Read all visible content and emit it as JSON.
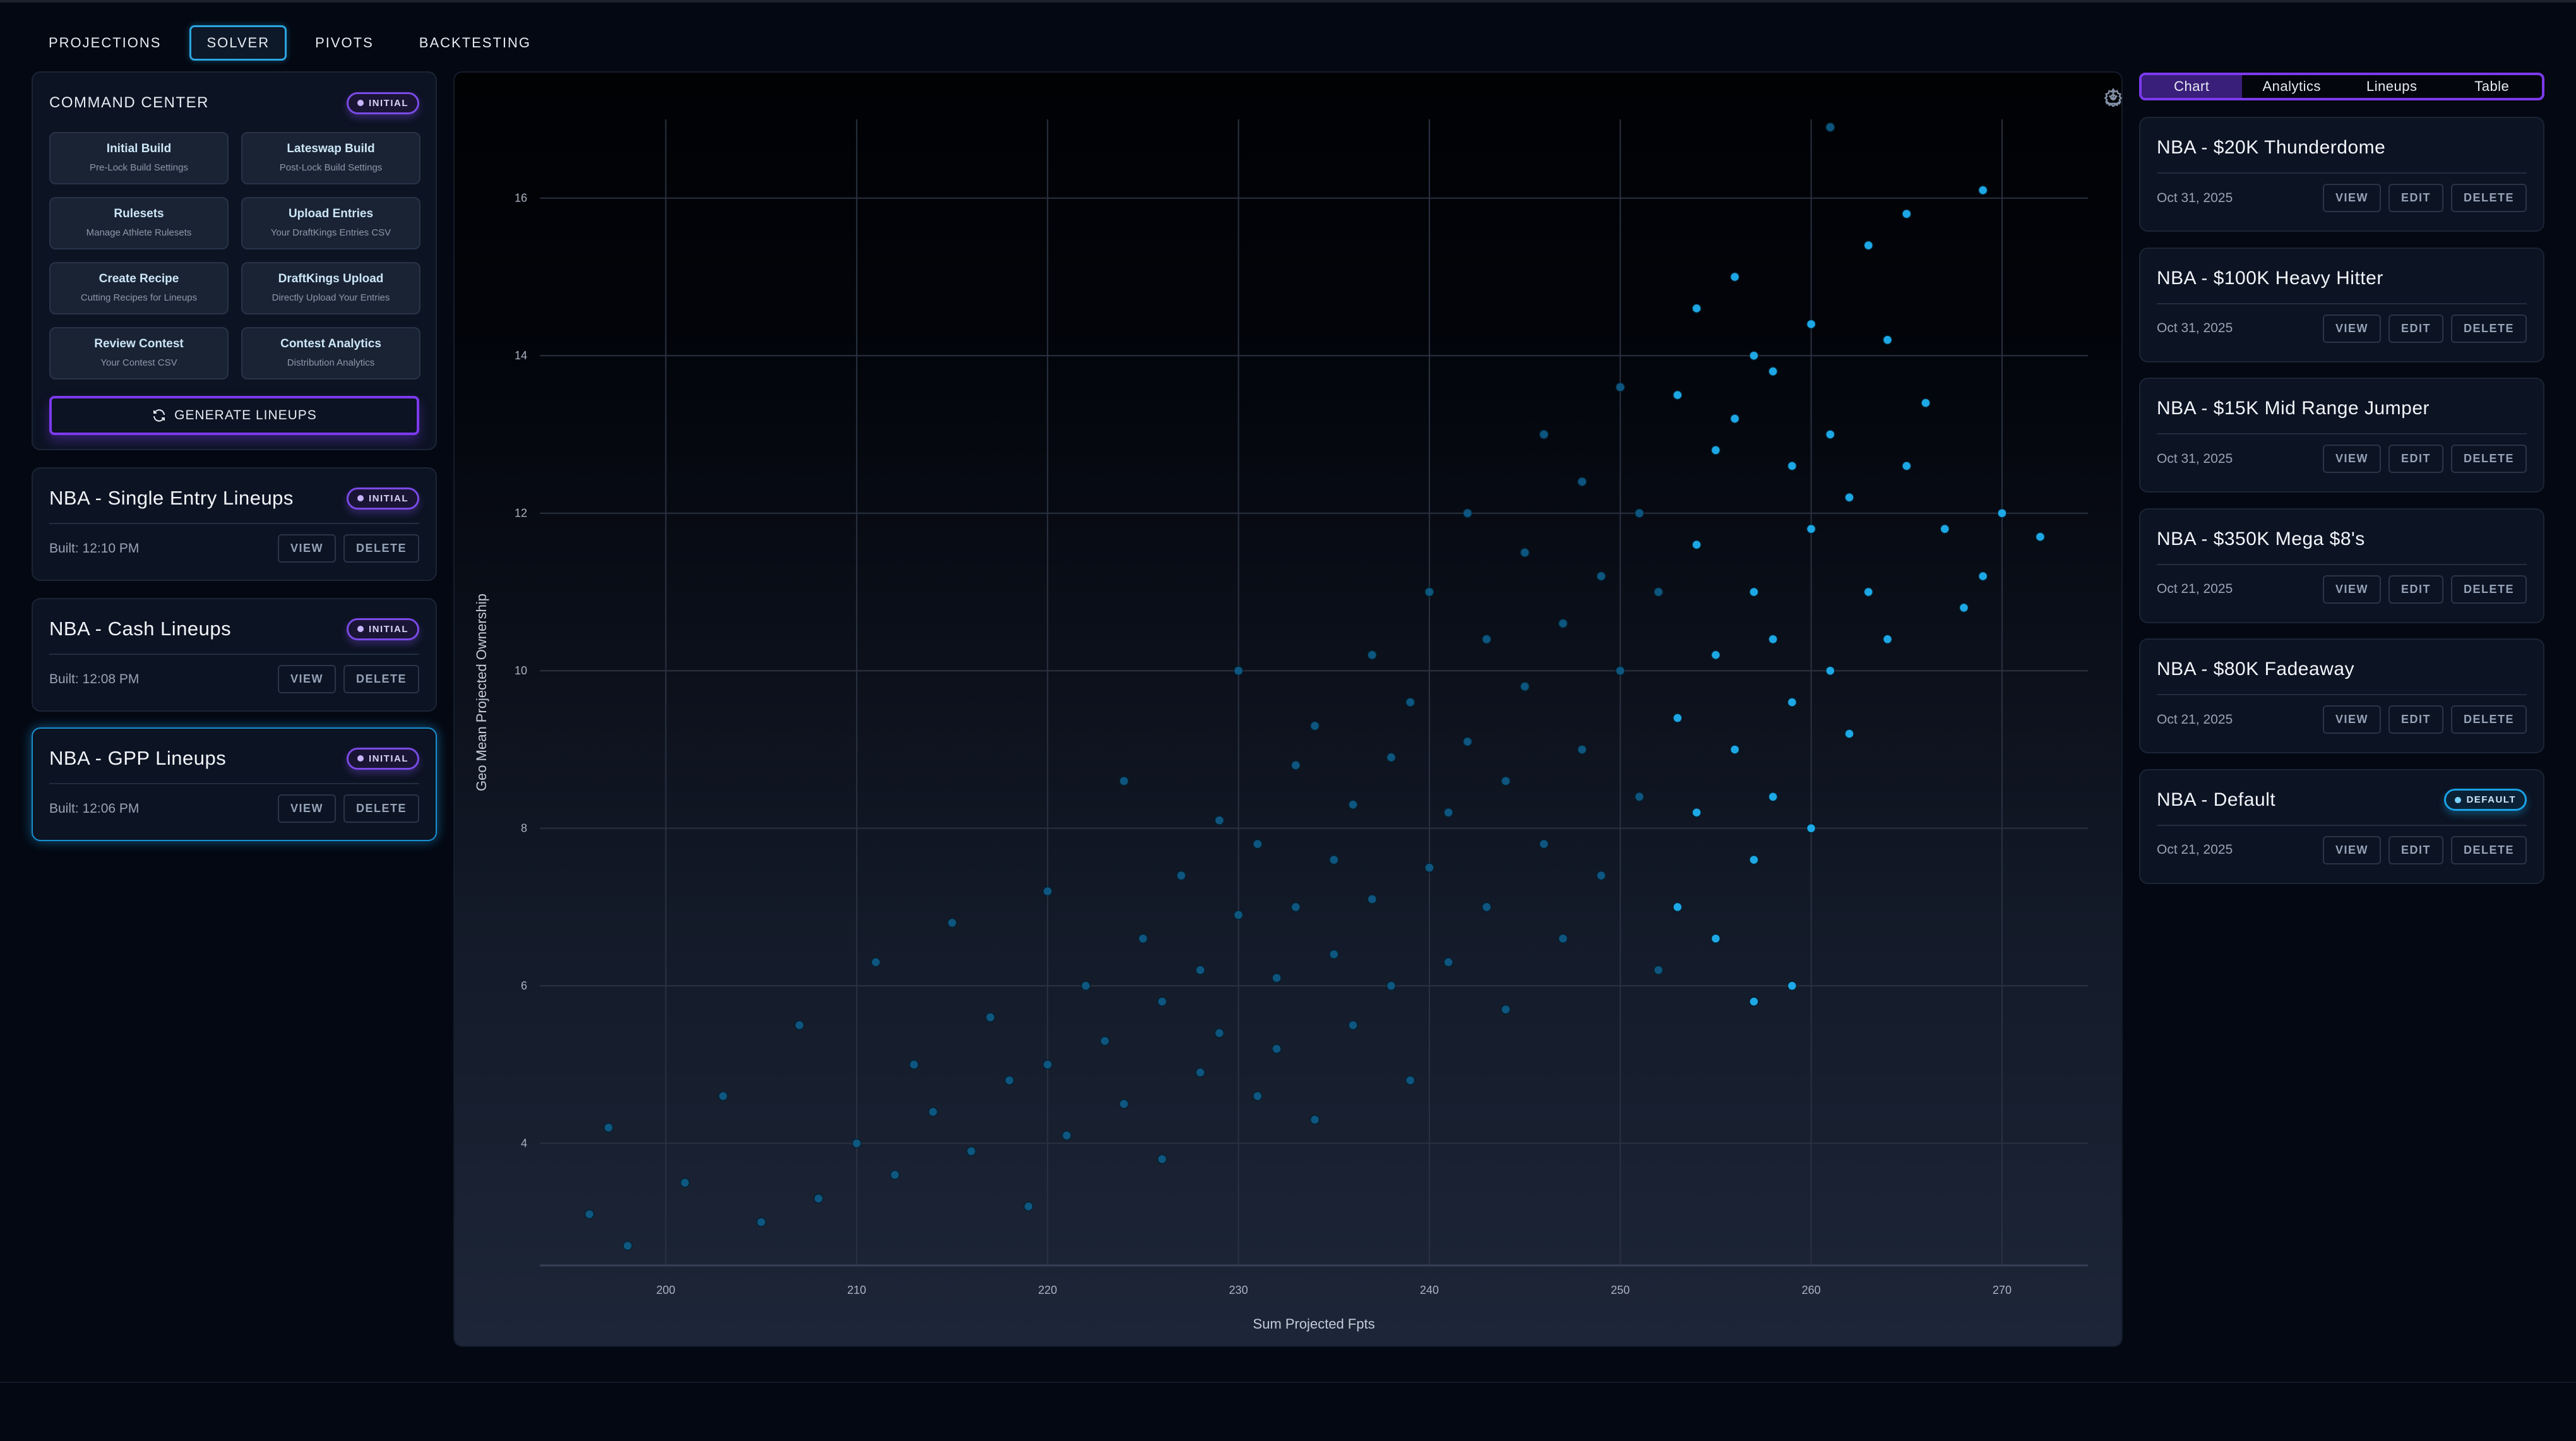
{
  "nav": {
    "tabs": [
      {
        "label": "PROJECTIONS"
      },
      {
        "label": "SOLVER",
        "active": true
      },
      {
        "label": "PIVOTS"
      },
      {
        "label": "BACKTESTING"
      }
    ]
  },
  "command_center": {
    "title": "COMMAND CENTER",
    "badge": "INITIAL",
    "buttons": [
      {
        "title": "Initial Build",
        "subtitle": "Pre-Lock Build Settings"
      },
      {
        "title": "Lateswap Build",
        "subtitle": "Post-Lock Build Settings"
      },
      {
        "title": "Rulesets",
        "subtitle": "Manage Athlete Rulesets"
      },
      {
        "title": "Upload Entries",
        "subtitle": "Your DraftKings Entries CSV"
      },
      {
        "title": "Create Recipe",
        "subtitle": "Cutting Recipes for Lineups"
      },
      {
        "title": "DraftKings Upload",
        "subtitle": "Directly Upload Your Entries"
      },
      {
        "title": "Review Contest",
        "subtitle": "Your Contest CSV"
      },
      {
        "title": "Contest Analytics",
        "subtitle": "Distribution Analytics"
      }
    ],
    "generate_label": "GENERATE LINEUPS",
    "generate_icon": "refresh-icon"
  },
  "lineup_sets": [
    {
      "title": "NBA - Single Entry Lineups",
      "badge": "INITIAL",
      "built": "Built: 12:10 PM",
      "view": "VIEW",
      "delete": "DELETE"
    },
    {
      "title": "NBA - Cash Lineups",
      "badge": "INITIAL",
      "built": "Built: 12:08 PM",
      "view": "VIEW",
      "delete": "DELETE"
    },
    {
      "title": "NBA - GPP Lineups",
      "badge": "INITIAL",
      "built": "Built: 12:06 PM",
      "view": "VIEW",
      "delete": "DELETE",
      "selected": true
    }
  ],
  "chart_toolbar": {
    "download_icon": "download-icon",
    "settings_icon": "gear-icon"
  },
  "right_tabs": [
    {
      "label": "Chart",
      "active": true
    },
    {
      "label": "Analytics"
    },
    {
      "label": "Lineups"
    },
    {
      "label": "Table"
    }
  ],
  "contests": [
    {
      "title": "NBA - $20K Thunderdome",
      "date": "Oct 31, 2025",
      "view": "VIEW",
      "edit": "EDIT",
      "delete": "DELETE"
    },
    {
      "title": "NBA - $100K Heavy Hitter",
      "date": "Oct 31, 2025",
      "view": "VIEW",
      "edit": "EDIT",
      "delete": "DELETE"
    },
    {
      "title": "NBA - $15K Mid Range Jumper",
      "date": "Oct 31, 2025",
      "view": "VIEW",
      "edit": "EDIT",
      "delete": "DELETE"
    },
    {
      "title": "NBA - $350K Mega $8's",
      "date": "Oct 21, 2025",
      "view": "VIEW",
      "edit": "EDIT",
      "delete": "DELETE"
    },
    {
      "title": "NBA - $80K Fadeaway",
      "date": "Oct 21, 2025",
      "view": "VIEW",
      "edit": "EDIT",
      "delete": "DELETE"
    },
    {
      "title": "NBA - Default",
      "badge": "DEFAULT",
      "date": "Oct 21, 2025",
      "view": "VIEW",
      "edit": "EDIT",
      "delete": "DELETE"
    }
  ],
  "colors": {
    "accent_purple": "#7c3aed",
    "accent_blue": "#1aa2e6",
    "point_dark": "#0e5a85",
    "point_bright": "#1fb0f0"
  },
  "chart_data": {
    "type": "scatter",
    "xlabel": "Sum Projected Fpts",
    "ylabel": "Geo Mean Projected Ownership",
    "xlim": [
      193.4,
      274.5
    ],
    "ylim": [
      2.45,
      17
    ],
    "xticks": [
      200,
      210,
      220,
      230,
      240,
      250,
      260,
      270
    ],
    "yticks": [
      4,
      6,
      8,
      10,
      12,
      14,
      16
    ],
    "grid": true,
    "series": [
      {
        "color": "#0e5a85",
        "points": [
          [
            196,
            3.1
          ],
          [
            197,
            4.2
          ],
          [
            198,
            2.7
          ],
          [
            201,
            3.5
          ],
          [
            203,
            4.6
          ],
          [
            205,
            3.0
          ],
          [
            207,
            5.5
          ],
          [
            208,
            3.3
          ],
          [
            210,
            4.0
          ],
          [
            211,
            6.3
          ],
          [
            212,
            3.6
          ],
          [
            213,
            5.0
          ],
          [
            214,
            4.4
          ],
          [
            215,
            6.8
          ],
          [
            216,
            3.9
          ],
          [
            217,
            5.6
          ],
          [
            218,
            4.8
          ],
          [
            219,
            3.2
          ],
          [
            220,
            7.2
          ],
          [
            220,
            5.0
          ],
          [
            221,
            4.1
          ],
          [
            222,
            6.0
          ],
          [
            223,
            5.3
          ],
          [
            224,
            8.6
          ],
          [
            224,
            4.5
          ],
          [
            225,
            6.6
          ],
          [
            226,
            5.8
          ],
          [
            226,
            3.8
          ],
          [
            227,
            7.4
          ],
          [
            228,
            4.9
          ],
          [
            228,
            6.2
          ],
          [
            229,
            8.1
          ],
          [
            229,
            5.4
          ],
          [
            230,
            10.0
          ],
          [
            230,
            6.9
          ],
          [
            231,
            4.6
          ],
          [
            231,
            7.8
          ],
          [
            232,
            6.1
          ],
          [
            232,
            5.2
          ],
          [
            233,
            8.8
          ],
          [
            233,
            7.0
          ],
          [
            234,
            4.3
          ],
          [
            234,
            9.3
          ],
          [
            235,
            6.4
          ],
          [
            235,
            7.6
          ],
          [
            236,
            8.3
          ],
          [
            236,
            5.5
          ],
          [
            237,
            10.2
          ],
          [
            237,
            7.1
          ],
          [
            238,
            6.0
          ],
          [
            238,
            8.9
          ],
          [
            239,
            9.6
          ],
          [
            239,
            4.8
          ],
          [
            240,
            11.0
          ],
          [
            240,
            7.5
          ],
          [
            241,
            8.2
          ],
          [
            241,
            6.3
          ],
          [
            242,
            12.0
          ],
          [
            242,
            9.1
          ],
          [
            243,
            7.0
          ],
          [
            243,
            10.4
          ],
          [
            244,
            8.6
          ],
          [
            244,
            5.7
          ],
          [
            245,
            11.5
          ],
          [
            245,
            9.8
          ],
          [
            246,
            7.8
          ],
          [
            246,
            13.0
          ],
          [
            247,
            10.6
          ],
          [
            247,
            6.6
          ],
          [
            248,
            12.4
          ],
          [
            248,
            9.0
          ],
          [
            249,
            11.2
          ],
          [
            249,
            7.4
          ],
          [
            250,
            13.6
          ],
          [
            250,
            10.0
          ],
          [
            251,
            8.4
          ],
          [
            251,
            12.0
          ],
          [
            252,
            6.2
          ],
          [
            252,
            11.0
          ],
          [
            261,
            16.9
          ]
        ]
      },
      {
        "color": "#1fb0f0",
        "points": [
          [
            253,
            13.5
          ],
          [
            253,
            9.4
          ],
          [
            253,
            7.0
          ],
          [
            254,
            14.6
          ],
          [
            254,
            11.6
          ],
          [
            254,
            8.2
          ],
          [
            255,
            12.8
          ],
          [
            255,
            10.2
          ],
          [
            255,
            6.6
          ],
          [
            256,
            15.0
          ],
          [
            256,
            13.2
          ],
          [
            256,
            9.0
          ],
          [
            257,
            14.0
          ],
          [
            257,
            11.0
          ],
          [
            257,
            7.6
          ],
          [
            257,
            5.8
          ],
          [
            258,
            13.8
          ],
          [
            258,
            10.4
          ],
          [
            258,
            8.4
          ],
          [
            259,
            12.6
          ],
          [
            259,
            9.6
          ],
          [
            259,
            6.0
          ],
          [
            260,
            14.4
          ],
          [
            260,
            11.8
          ],
          [
            260,
            8.0
          ],
          [
            261,
            13.0
          ],
          [
            261,
            10.0
          ],
          [
            262,
            12.2
          ],
          [
            262,
            9.2
          ],
          [
            263,
            15.4
          ],
          [
            263,
            11.0
          ],
          [
            264,
            14.2
          ],
          [
            264,
            10.4
          ],
          [
            265,
            15.8
          ],
          [
            265,
            12.6
          ],
          [
            266,
            13.4
          ],
          [
            267,
            11.8
          ],
          [
            268,
            10.8
          ],
          [
            269,
            16.1
          ],
          [
            269,
            11.2
          ],
          [
            270,
            12.0
          ],
          [
            272,
            11.7
          ]
        ]
      }
    ]
  }
}
